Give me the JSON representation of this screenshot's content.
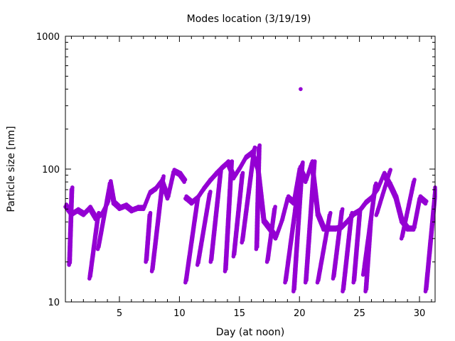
{
  "chart_data": {
    "type": "scatter",
    "title": "Modes location (3/19/19)",
    "xlabel": "Day (at noon)",
    "ylabel": "Particle size [nm]",
    "xlim": [
      0.5,
      31.3
    ],
    "ylim": [
      10,
      1000
    ],
    "yscale": "log",
    "xticks": [
      5,
      10,
      15,
      20,
      25,
      30
    ],
    "yticks": [
      10,
      100,
      1000
    ],
    "ytick_labels": [
      "10",
      "100",
      "1000"
    ],
    "xtick_labels": [
      "5",
      "10",
      "15",
      "20",
      "25",
      "30"
    ],
    "grid": false,
    "legend": "none",
    "color": "#9400d3",
    "tracks": [
      [
        [
          0.5,
          52
        ],
        [
          1,
          45
        ],
        [
          1.5,
          48
        ],
        [
          2,
          45
        ],
        [
          2.5,
          50
        ],
        [
          3,
          42
        ],
        [
          3.5,
          45
        ],
        [
          4,
          55
        ],
        [
          4.2,
          78
        ],
        [
          4.5,
          55
        ],
        [
          5,
          50
        ],
        [
          5.5,
          52
        ],
        [
          6,
          48
        ],
        [
          6.5,
          50
        ],
        [
          7,
          50
        ],
        [
          7.5,
          65
        ],
        [
          8,
          70
        ],
        [
          8.5,
          80
        ],
        [
          9,
          60
        ],
        [
          9.5,
          95
        ],
        [
          10,
          90
        ],
        [
          10.4,
          80
        ]
      ],
      [
        [
          10.5,
          60
        ],
        [
          11,
          55
        ],
        [
          11.5,
          60
        ],
        [
          12,
          70
        ],
        [
          12.5,
          80
        ],
        [
          13,
          90
        ],
        [
          13.5,
          100
        ],
        [
          14,
          110
        ],
        [
          14.5,
          85
        ],
        [
          15,
          100
        ],
        [
          15.5,
          120
        ],
        [
          16,
          130
        ],
        [
          16.5,
          100
        ],
        [
          17,
          40
        ],
        [
          17.5,
          35
        ],
        [
          18,
          30
        ],
        [
          18.5,
          40
        ],
        [
          19,
          60
        ],
        [
          19.5,
          55
        ],
        [
          20,
          100
        ],
        [
          20.5,
          80
        ],
        [
          21,
          110
        ],
        [
          21.5,
          45
        ],
        [
          22,
          35
        ],
        [
          22.5,
          35
        ],
        [
          23,
          35
        ],
        [
          23.5,
          36
        ],
        [
          24,
          40
        ],
        [
          24.5,
          45
        ],
        [
          25,
          48
        ],
        [
          25.5,
          55
        ],
        [
          26,
          60
        ],
        [
          26.5,
          70
        ],
        [
          27,
          90
        ],
        [
          27.5,
          75
        ],
        [
          28,
          60
        ],
        [
          28.5,
          40
        ],
        [
          29,
          35
        ],
        [
          29.5,
          35
        ],
        [
          30,
          60
        ],
        [
          30.5,
          55
        ]
      ],
      [
        [
          0.8,
          19
        ],
        [
          1.0,
          70
        ]
      ],
      [
        [
          2.5,
          15
        ],
        [
          3.2,
          45
        ]
      ],
      [
        [
          3.2,
          25
        ],
        [
          4.2,
          78
        ]
      ],
      [
        [
          7.2,
          20
        ],
        [
          7.5,
          45
        ]
      ],
      [
        [
          7.7,
          17
        ],
        [
          8.6,
          85
        ]
      ],
      [
        [
          10.5,
          14
        ],
        [
          11.5,
          60
        ]
      ],
      [
        [
          11.5,
          19
        ],
        [
          12.5,
          65
        ]
      ],
      [
        [
          12.6,
          20
        ],
        [
          13.4,
          95
        ]
      ],
      [
        [
          13.8,
          17
        ],
        [
          14.3,
          110
        ]
      ],
      [
        [
          14.5,
          22
        ],
        [
          15.2,
          90
        ]
      ],
      [
        [
          15.2,
          28
        ],
        [
          16.2,
          140
        ]
      ],
      [
        [
          16.4,
          25
        ],
        [
          16.6,
          145
        ]
      ],
      [
        [
          17.3,
          20
        ],
        [
          17.9,
          50
        ]
      ],
      [
        [
          18.8,
          14
        ],
        [
          19.8,
          65
        ]
      ],
      [
        [
          19.5,
          12
        ],
        [
          20.2,
          108
        ]
      ],
      [
        [
          20.5,
          14
        ],
        [
          21.2,
          110
        ]
      ],
      [
        [
          21.5,
          14
        ],
        [
          22.5,
          45
        ]
      ],
      [
        [
          22.8,
          15
        ],
        [
          23.5,
          48
        ]
      ],
      [
        [
          23.6,
          12
        ],
        [
          24.3,
          45
        ]
      ],
      [
        [
          24.5,
          14
        ],
        [
          25.0,
          48
        ]
      ],
      [
        [
          25.3,
          16
        ],
        [
          26.3,
          75
        ]
      ],
      [
        [
          25.5,
          12
        ],
        [
          25.9,
          40
        ]
      ],
      [
        [
          26.4,
          45
        ],
        [
          27.5,
          95
        ]
      ],
      [
        [
          28.5,
          30
        ],
        [
          29.5,
          80
        ]
      ],
      [
        [
          30.5,
          12
        ],
        [
          31.3,
          70
        ]
      ]
    ],
    "points": [
      [
        20.1,
        400
      ]
    ]
  }
}
